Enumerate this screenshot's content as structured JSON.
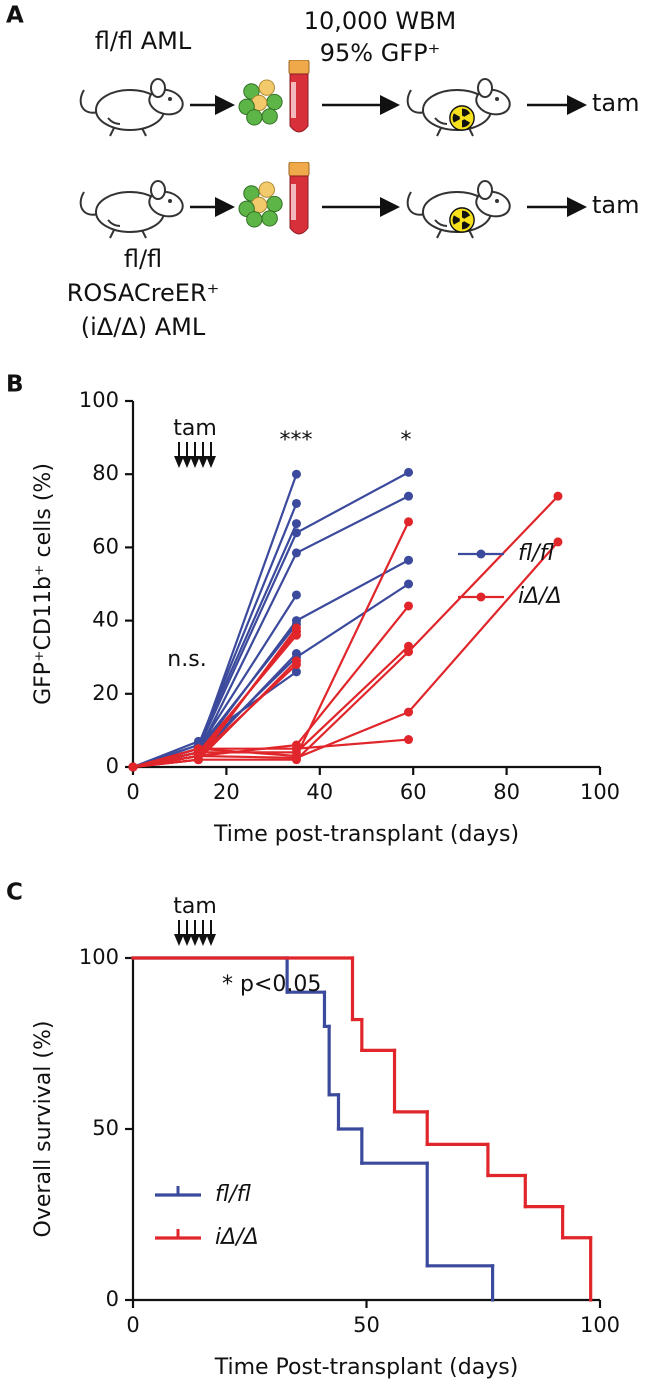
{
  "panel_labels": [
    "A",
    "B",
    "C"
  ],
  "schematic": {
    "top_genotype": "fl/fl AML",
    "dose": "10,000 WBM",
    "gfp": "95% GFP⁺",
    "treatment": [
      "tam",
      "tam"
    ],
    "bottom_genotype": [
      "fl/fl",
      "ROSACreER⁺",
      "(iΔ/Δ) AML"
    ]
  },
  "chart_data": [
    {
      "type": "line",
      "xlabel": "Time post-transplant (days)",
      "ylabel": "GFP⁺CD11b⁺ cells (%)",
      "xlim": [
        0,
        100
      ],
      "xticks": [
        0,
        20,
        40,
        60,
        80,
        100
      ],
      "ylim": [
        0,
        100
      ],
      "yticks": [
        0,
        20,
        40,
        60,
        80,
        100
      ],
      "legend": "lower right",
      "annotations": [
        "tam",
        "n.s.",
        "***",
        "*"
      ],
      "series": [
        {
          "name": "fl/fl",
          "color": "#3b4a9c",
          "lines": [
            {
              "x": [
                0,
                14,
                35
              ],
              "values": [
                0,
                5,
                80
              ]
            },
            {
              "x": [
                0,
                14,
                35
              ],
              "values": [
                0,
                6,
                72
              ]
            },
            {
              "x": [
                0,
                14,
                35
              ],
              "values": [
                0,
                6,
                66.5
              ]
            },
            {
              "x": [
                0,
                14,
                35,
                59
              ],
              "values": [
                0,
                5,
                64,
                80.5
              ]
            },
            {
              "x": [
                0,
                14,
                35,
                59
              ],
              "values": [
                0,
                4,
                58.5,
                74
              ]
            },
            {
              "x": [
                0,
                14,
                35
              ],
              "values": [
                0,
                5,
                47
              ]
            },
            {
              "x": [
                0,
                14,
                35,
                59
              ],
              "values": [
                0,
                4,
                40,
                56.5
              ]
            },
            {
              "x": [
                0,
                14,
                35
              ],
              "values": [
                0,
                5,
                39
              ]
            },
            {
              "x": [
                0,
                14,
                35
              ],
              "values": [
                0,
                3,
                31
              ]
            },
            {
              "x": [
                0,
                14,
                35,
                59
              ],
              "values": [
                0,
                4,
                30,
                50
              ]
            },
            {
              "x": [
                0,
                14,
                35
              ],
              "values": [
                0,
                7,
                26
              ]
            }
          ]
        },
        {
          "name": "iΔ/Δ",
          "color": "#e0262b",
          "lines": [
            {
              "x": [
                0,
                14,
                35
              ],
              "values": [
                0,
                2,
                38
              ]
            },
            {
              "x": [
                0,
                14,
                35
              ],
              "values": [
                0,
                3,
                37
              ]
            },
            {
              "x": [
                0,
                14,
                35
              ],
              "values": [
                0,
                4,
                36
              ]
            },
            {
              "x": [
                0,
                14,
                35
              ],
              "values": [
                0,
                2,
                29
              ]
            },
            {
              "x": [
                0,
                14,
                35
              ],
              "values": [
                0,
                3,
                28
              ]
            },
            {
              "x": [
                0,
                14,
                35,
                59
              ],
              "values": [
                0,
                5,
                3,
                67
              ]
            },
            {
              "x": [
                0,
                14,
                35,
                59
              ],
              "values": [
                0,
                3,
                6,
                44
              ]
            },
            {
              "x": [
                0,
                14,
                35,
                59
              ],
              "values": [
                0,
                4,
                4,
                33
              ]
            },
            {
              "x": [
                0,
                14,
                35,
                59,
                91
              ],
              "values": [
                0,
                2,
                2,
                31.5,
                74
              ]
            },
            {
              "x": [
                0,
                14,
                35,
                59,
                91
              ],
              "values": [
                0,
                3,
                2.5,
                15,
                61.5
              ]
            },
            {
              "x": [
                0,
                14,
                35,
                59
              ],
              "values": [
                0,
                5,
                5,
                7.5
              ]
            }
          ]
        }
      ]
    },
    {
      "type": "step",
      "xlabel": "Time Post-transplant (days)",
      "ylabel": "Overall survival (%)",
      "xlim": [
        0,
        100
      ],
      "xticks": [
        0,
        50,
        100
      ],
      "ylim": [
        0,
        100
      ],
      "yticks": [
        0,
        50,
        100
      ],
      "legend": "lower left",
      "annotations": [
        "tam",
        "* p<0.05"
      ],
      "series": [
        {
          "name": "fl/fl",
          "color": "#3b4a9c",
          "x": [
            0,
            33,
            41,
            42,
            44,
            49,
            63,
            77
          ],
          "values": [
            100,
            90,
            80,
            60,
            50,
            40,
            10,
            0
          ]
        },
        {
          "name": "iΔ/Δ",
          "color": "#e0262b",
          "x": [
            0,
            47,
            49,
            56,
            63,
            76,
            84,
            92,
            98
          ],
          "values": [
            100,
            82,
            73,
            55,
            45.5,
            36.4,
            27.3,
            18.2,
            0
          ]
        }
      ]
    }
  ]
}
